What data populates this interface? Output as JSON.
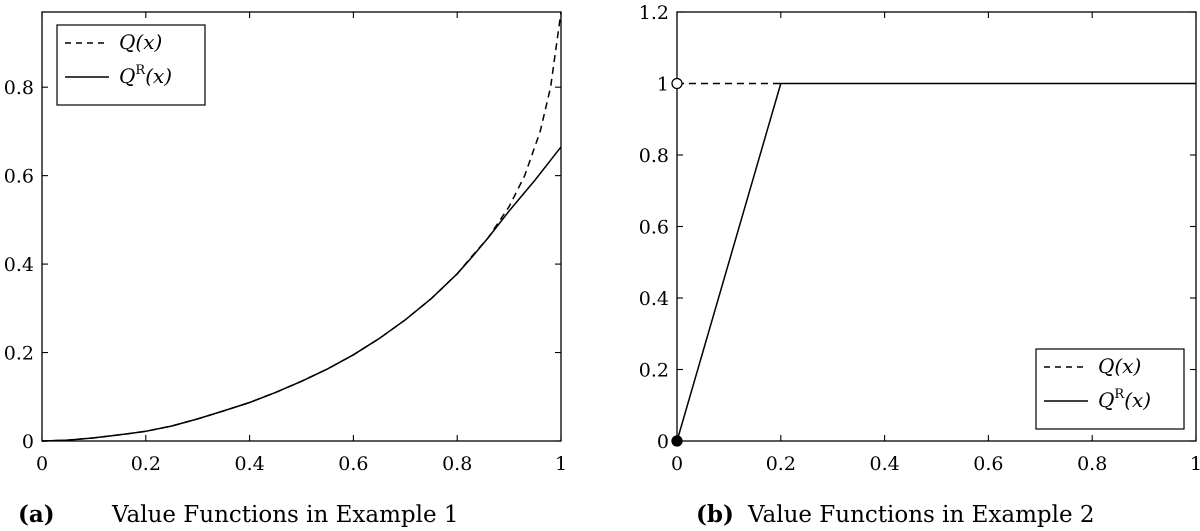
{
  "chart_data": [
    {
      "type": "line",
      "caption_label": "(a)",
      "caption_text": "Value Functions in Example 1",
      "xlim": [
        0,
        1
      ],
      "ylim": [
        0,
        0.97
      ],
      "xticks": [
        "0",
        "0.2",
        "0.4",
        "0.6",
        "0.8",
        "1"
      ],
      "xtick_values": [
        0,
        0.2,
        0.4,
        0.6,
        0.8,
        1
      ],
      "yticks": [
        "0",
        "0.2",
        "0.4",
        "0.6",
        "0.8"
      ],
      "ytick_values": [
        0,
        0.2,
        0.4,
        0.6,
        0.8
      ],
      "legend_position": "top-left",
      "series": [
        {
          "name": "Q(x)",
          "legend_main": "Q(x)",
          "legend_sup": "",
          "style": "dashed",
          "x": [
            0,
            0.05,
            0.1,
            0.15,
            0.2,
            0.25,
            0.3,
            0.35,
            0.4,
            0.45,
            0.5,
            0.55,
            0.6,
            0.65,
            0.7,
            0.75,
            0.8,
            0.83,
            0.86,
            0.9,
            0.93,
            0.96,
            0.98,
            1.0
          ],
          "y": [
            0,
            0.002,
            0.007,
            0.014,
            0.022,
            0.034,
            0.05,
            0.068,
            0.087,
            0.11,
            0.135,
            0.163,
            0.195,
            0.232,
            0.274,
            0.322,
            0.378,
            0.42,
            0.46,
            0.53,
            0.6,
            0.7,
            0.8,
            0.97
          ]
        },
        {
          "name": "Q^R(x)",
          "legend_main": "Q",
          "legend_sup": "R",
          "legend_tail": "(x)",
          "style": "solid",
          "x": [
            0,
            0.05,
            0.1,
            0.15,
            0.2,
            0.25,
            0.3,
            0.35,
            0.4,
            0.45,
            0.5,
            0.55,
            0.6,
            0.65,
            0.7,
            0.75,
            0.8,
            0.83,
            0.86,
            0.9,
            0.95,
            1.0
          ],
          "y": [
            0,
            0.002,
            0.007,
            0.014,
            0.022,
            0.034,
            0.05,
            0.068,
            0.087,
            0.11,
            0.135,
            0.163,
            0.195,
            0.232,
            0.274,
            0.322,
            0.378,
            0.418,
            0.46,
            0.52,
            0.59,
            0.665
          ]
        }
      ]
    },
    {
      "type": "line",
      "caption_label": "(b)",
      "caption_text": "Value Functions in Example 2",
      "xlim": [
        0,
        1
      ],
      "ylim": [
        0,
        1.2
      ],
      "xticks": [
        "0",
        "0.2",
        "0.4",
        "0.6",
        "0.8",
        "1"
      ],
      "xtick_values": [
        0,
        0.2,
        0.4,
        0.6,
        0.8,
        1
      ],
      "yticks": [
        "0",
        "0.2",
        "0.4",
        "0.6",
        "0.8",
        "1",
        "1.2"
      ],
      "ytick_values": [
        0,
        0.2,
        0.4,
        0.6,
        0.8,
        1.0,
        1.2
      ],
      "legend_position": "bottom-right",
      "series": [
        {
          "name": "Q(x)",
          "legend_main": "Q(x)",
          "legend_sup": "",
          "style": "dashed",
          "x": [
            0,
            0.2
          ],
          "y": [
            1,
            1
          ]
        },
        {
          "name": "Q^R(x)",
          "legend_main": "Q",
          "legend_sup": "R",
          "legend_tail": "(x)",
          "style": "solid",
          "x": [
            0,
            0.2,
            1.0
          ],
          "y": [
            0,
            1,
            1
          ]
        }
      ],
      "markers": [
        {
          "x": 0,
          "y": 1,
          "fill": "open"
        },
        {
          "x": 0,
          "y": 0,
          "fill": "filled"
        }
      ]
    }
  ]
}
